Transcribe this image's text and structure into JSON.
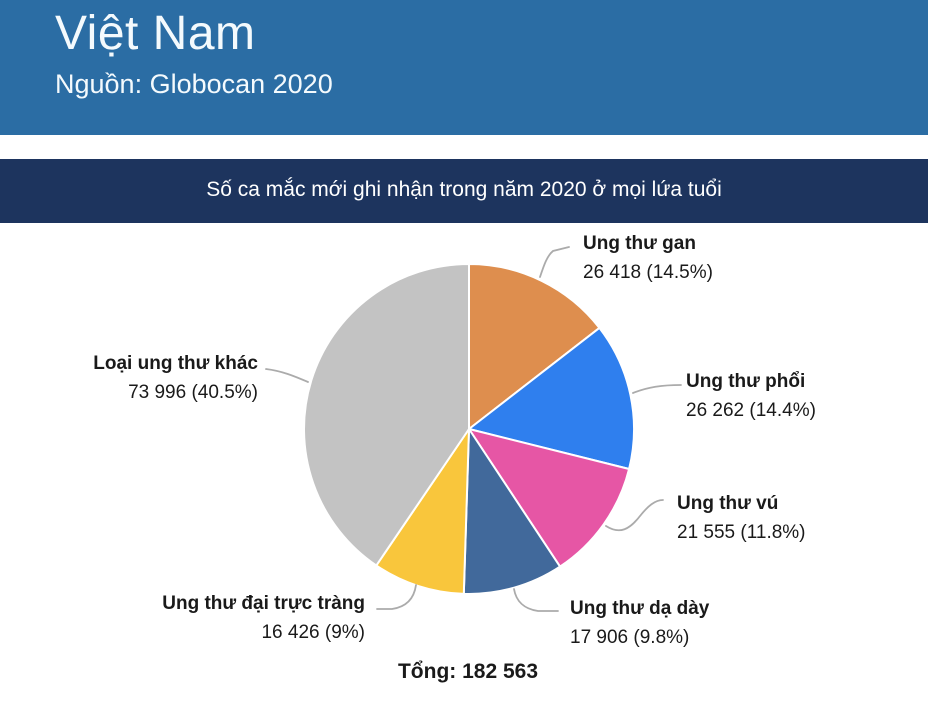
{
  "header": {
    "title": "Việt Nam",
    "source": "Nguồn: Globocan 2020"
  },
  "banner": {
    "text": "Số ca mắc mới ghi nhận trong năm 2020 ở mọi lứa tuổi"
  },
  "total_label": "Tổng: 182 563",
  "colors": {
    "header_blue": "#2B6DA4",
    "banner_navy": "#1D345E",
    "header_text": "#F4FAFD",
    "label_text": "#1A1A1A",
    "leader_line": "#ABABAB",
    "slice_stroke": "#FFFFFF"
  },
  "chart_data": {
    "type": "pie",
    "title": "Số ca mắc mới ghi nhận trong năm 2020 ở mọi lứa tuổi",
    "source": "Nguồn: Globocan 2020",
    "total": 182563,
    "total_display": "Tổng: 182 563",
    "start_angle_deg": 0,
    "direction": "clockwise",
    "legend_position": "callout-labels",
    "slices": [
      {
        "label": "Ung thư gan",
        "value": 26418,
        "pct": 14.5,
        "value_display": "26 418 (14.5%)",
        "color": "#DE8E4E"
      },
      {
        "label": "Ung thư phổi",
        "value": 26262,
        "pct": 14.4,
        "value_display": "26 262 (14.4%)",
        "color": "#2F7FEE"
      },
      {
        "label": "Ung thư vú",
        "value": 21555,
        "pct": 11.8,
        "value_display": "21 555 (11.8%)",
        "color": "#E656A5"
      },
      {
        "label": "Ung thư dạ dày",
        "value": 17906,
        "pct": 9.8,
        "value_display": "17 906 (9.8%)",
        "color": "#41699B"
      },
      {
        "label": "Ung thư đại trực tràng",
        "value": 16426,
        "pct": 9.0,
        "value_display": "16 426 (9%)",
        "color": "#F9C63C"
      },
      {
        "label": "Loại ung thư khác",
        "value": 73996,
        "pct": 40.5,
        "value_display": "73 996 (40.5%)",
        "color": "#C3C3C3"
      }
    ]
  }
}
